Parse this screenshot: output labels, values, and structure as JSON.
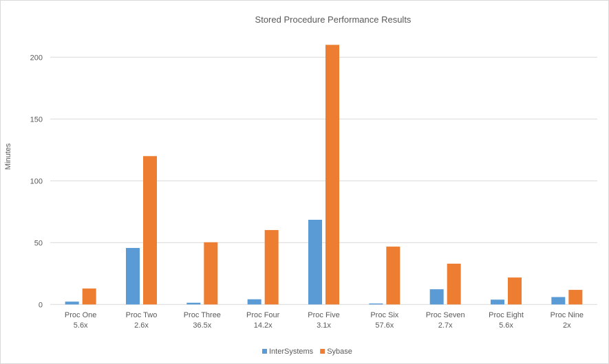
{
  "chart_data": {
    "type": "bar",
    "title": "Stored Procedure Performance Results",
    "ylabel": "Minutes",
    "xlabel": "",
    "categories": [
      [
        "Proc One",
        "5.6x"
      ],
      [
        "Proc Two",
        "2.6x"
      ],
      [
        "Proc Three",
        "36.5x"
      ],
      [
        "Proc Four",
        "14.2x"
      ],
      [
        "Proc Five",
        "3.1x"
      ],
      [
        "Proc Six",
        "57.6x"
      ],
      [
        "Proc Seven",
        "2.7x"
      ],
      [
        "Proc Eight",
        "5.6x"
      ],
      [
        "Proc Nine",
        "2x"
      ]
    ],
    "series": [
      {
        "name": "InterSystems",
        "color": "#5b9bd5",
        "values": [
          2.3,
          45.7,
          1.4,
          4.2,
          68.5,
          0.8,
          12.3,
          3.9,
          6.0
        ]
      },
      {
        "name": "Sybase",
        "color": "#ed7d31",
        "values": [
          12.9,
          120,
          50.3,
          60.2,
          210,
          46.8,
          33,
          21.8,
          11.8
        ]
      }
    ],
    "ylim": [
      0,
      230
    ],
    "yticks": [
      0,
      50,
      100,
      150,
      200
    ],
    "grid": true,
    "legend": "bottom"
  }
}
